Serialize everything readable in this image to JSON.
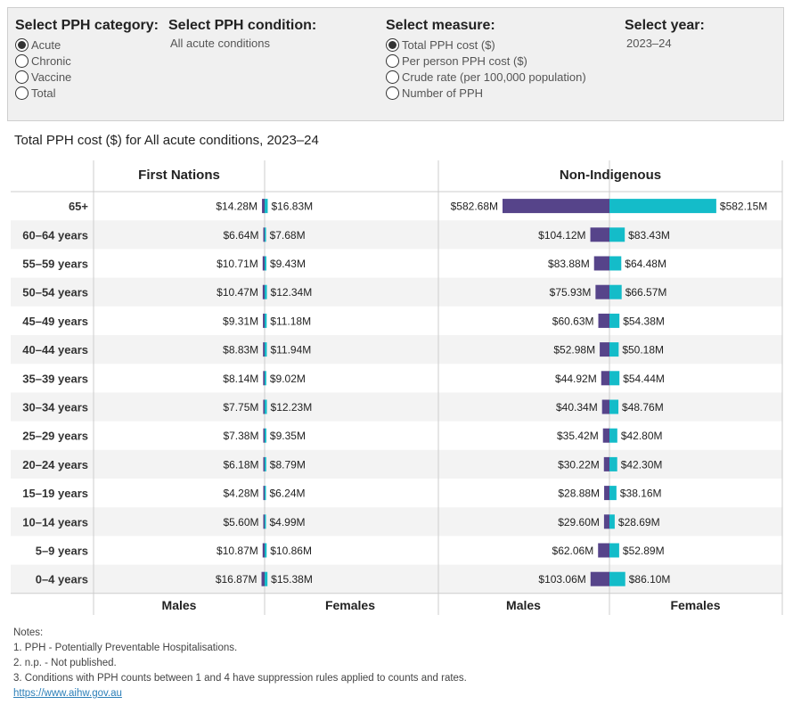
{
  "filters": {
    "category": {
      "title": "Select PPH category:",
      "options": [
        "Acute",
        "Chronic",
        "Vaccine",
        "Total"
      ],
      "selected": 0
    },
    "condition": {
      "title": "Select PPH condition:",
      "value": "All acute conditions"
    },
    "measure": {
      "title": "Select measure:",
      "options": [
        "Total PPH cost ($)",
        "Per person PPH cost ($)",
        "Crude rate (per 100,000 population)",
        "Number of PPH"
      ],
      "selected": 0
    },
    "year": {
      "title": "Select year:",
      "value": "2023–24"
    }
  },
  "chart_title": "Total PPH cost ($) for All acute conditions, 2023–24",
  "colors": {
    "males": "#56448a",
    "females": "#14bcc9",
    "row_alt": "#f3f3f3",
    "grid": "#cccccc"
  },
  "chart_data": {
    "type": "bar",
    "orientation": "horizontal",
    "layout": "diverging (population pyramid)",
    "categories": [
      "65+",
      "60–64 years",
      "55–59 years",
      "50–54 years",
      "45–49 years",
      "40–44 years",
      "35–39 years",
      "30–34 years",
      "25–29 years",
      "20–24 years",
      "15–19 years",
      "10–14 years",
      "5–9 years",
      "0–4 years"
    ],
    "panels": [
      {
        "name": "First Nations",
        "series": [
          {
            "name": "Males",
            "values": [
              14.28,
              6.64,
              10.71,
              10.47,
              9.31,
              8.83,
              8.14,
              7.75,
              7.38,
              6.18,
              4.28,
              5.6,
              10.87,
              16.87
            ],
            "labels": [
              "$14.28M",
              "$6.64M",
              "$10.71M",
              "$10.47M",
              "$9.31M",
              "$8.83M",
              "$8.14M",
              "$7.75M",
              "$7.38M",
              "$6.18M",
              "$4.28M",
              "$5.60M",
              "$10.87M",
              "$16.87M"
            ]
          },
          {
            "name": "Females",
            "values": [
              16.83,
              7.68,
              9.43,
              12.34,
              11.18,
              11.94,
              9.02,
              12.23,
              9.35,
              8.79,
              6.24,
              4.99,
              10.86,
              15.38
            ],
            "labels": [
              "$16.83M",
              "$7.68M",
              "$9.43M",
              "$12.34M",
              "$11.18M",
              "$11.94M",
              "$9.02M",
              "$12.23M",
              "$9.35M",
              "$8.79M",
              "$6.24M",
              "$4.99M",
              "$10.86M",
              "$15.38M"
            ]
          }
        ]
      },
      {
        "name": "Non-Indigenous",
        "series": [
          {
            "name": "Males",
            "values": [
              582.68,
              104.12,
              83.88,
              75.93,
              60.63,
              52.98,
              44.92,
              40.34,
              35.42,
              30.22,
              28.88,
              29.6,
              62.06,
              103.06
            ],
            "labels": [
              "$582.68M",
              "$104.12M",
              "$83.88M",
              "$75.93M",
              "$60.63M",
              "$52.98M",
              "$44.92M",
              "$40.34M",
              "$35.42M",
              "$30.22M",
              "$28.88M",
              "$29.60M",
              "$62.06M",
              "$103.06M"
            ]
          },
          {
            "name": "Females",
            "values": [
              582.15,
              83.43,
              64.48,
              66.57,
              54.38,
              50.18,
              54.44,
              48.76,
              42.8,
              42.3,
              38.16,
              28.69,
              52.89,
              86.1
            ],
            "labels": [
              "$582.15M",
              "$83.43M",
              "$64.48M",
              "$66.57M",
              "$54.38M",
              "$50.18M",
              "$54.44M",
              "$48.76M",
              "$42.80M",
              "$42.30M",
              "$38.16M",
              "$28.69M",
              "$52.89M",
              "$86.10M"
            ]
          }
        ]
      }
    ],
    "unit": "$M",
    "grid": false,
    "legend": "bottom"
  },
  "notes": {
    "heading": "Notes:",
    "items": [
      "1. PPH - Potentially Preventable Hospitalisations.",
      "2. n.p. - Not published.",
      "3. Conditions with PPH counts between 1 and 4 have suppression rules applied to counts and rates."
    ],
    "link": "https://www.aihw.gov.au"
  }
}
